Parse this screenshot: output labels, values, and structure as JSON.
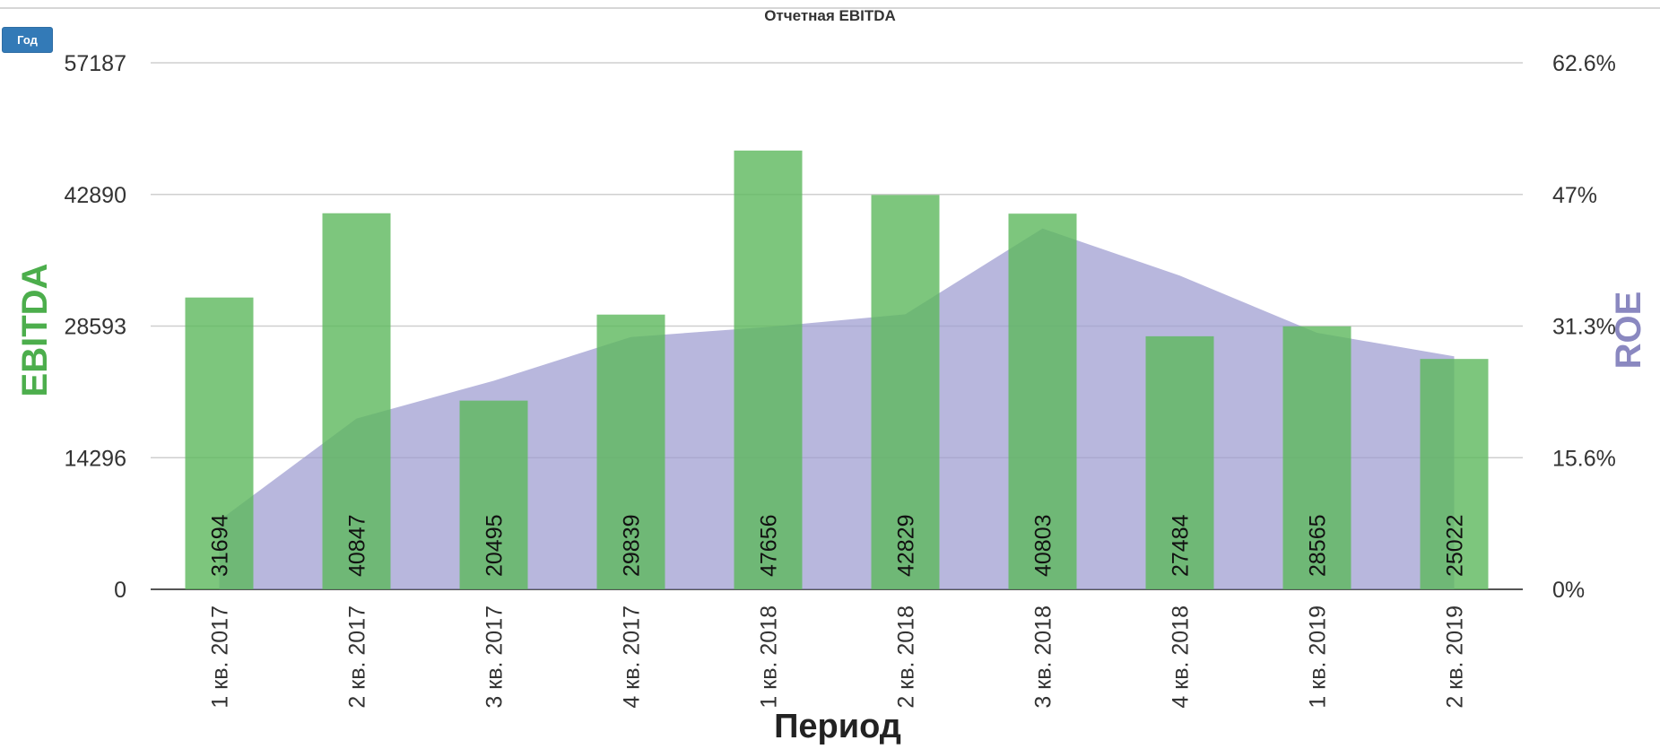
{
  "toolbar": {
    "period_button_label": "Год"
  },
  "chart_data": {
    "type": "bar",
    "title": "Отчетная EBITDA",
    "xlabel": "Период",
    "ylabel": "EBITDA",
    "y2label": "ROE",
    "categories": [
      "1 кв. 2017",
      "2 кв. 2017",
      "3 кв. 2017",
      "4 кв. 2017",
      "1 кв. 2018",
      "2 кв. 2018",
      "3 кв. 2018",
      "4 кв. 2018",
      "1 кв. 2019",
      "2 кв. 2019"
    ],
    "series": [
      {
        "name": "EBITDA",
        "type": "bar",
        "axis": "left",
        "color": "#5cb85c",
        "values": [
          31694,
          40847,
          20495,
          29839,
          47656,
          42829,
          40803,
          27484,
          28565,
          25022
        ]
      },
      {
        "name": "ROE",
        "type": "area",
        "axis": "right",
        "color": "#9d9bd0",
        "values": [
          8.2,
          20.3,
          24.8,
          30.0,
          31.2,
          32.7,
          42.9,
          37.3,
          30.5,
          27.7
        ]
      }
    ],
    "ylim": [
      0,
      57187
    ],
    "yticks": [
      "0",
      "14296",
      "28593",
      "42890",
      "57187"
    ],
    "y2lim": [
      0,
      62.6
    ],
    "y2ticks": [
      "0%",
      "15.6%",
      "31.3%",
      "47%",
      "62.6%"
    ],
    "grid": true,
    "legend": "none",
    "colors": {
      "bar": "#5cb85c",
      "area": "#9d9bd0",
      "left_axis_title": "#4cae4c",
      "right_axis_title": "#8a88c0"
    }
  }
}
